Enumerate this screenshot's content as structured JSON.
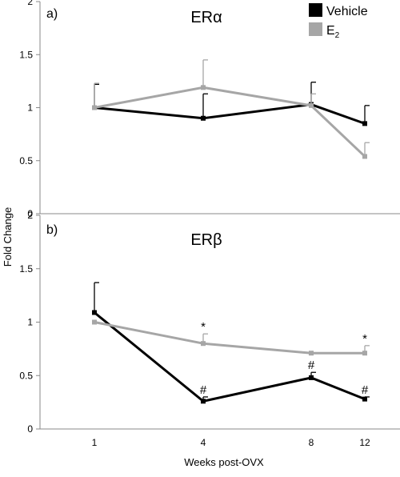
{
  "chart_data": [
    {
      "type": "line",
      "panel_label": "a)",
      "title": "ERα",
      "ylabel": "Fold Change",
      "xlabel": "",
      "ylim": [
        0,
        2
      ],
      "yticks": [
        "0",
        "0.5",
        "1",
        "1.5",
        "2"
      ],
      "categories": [
        "1",
        "4",
        "8",
        "12"
      ],
      "show_x_ticks": false,
      "series": [
        {
          "name": "Vehicle",
          "color": "#000000",
          "values": [
            1.0,
            0.9,
            1.03,
            0.85
          ],
          "errors": [
            0.22,
            0.23,
            0.21,
            0.17
          ],
          "markers": [
            "",
            "",
            "",
            ""
          ]
        },
        {
          "name": "E2",
          "color": "#a6a6a6",
          "values": [
            1.0,
            1.19,
            1.02,
            0.54
          ],
          "errors": [
            0.23,
            0.26,
            0.11,
            0.13
          ],
          "markers": [
            "",
            "",
            "",
            ""
          ]
        }
      ]
    },
    {
      "type": "line",
      "panel_label": "b)",
      "title": "ERβ",
      "ylabel": "Fold Change",
      "xlabel": "Weeks post-OVX",
      "ylim": [
        0,
        2
      ],
      "yticks": [
        "0",
        "0.5",
        "1",
        "1.5",
        "2"
      ],
      "categories": [
        "1",
        "4",
        "8",
        "12"
      ],
      "show_x_ticks": true,
      "series": [
        {
          "name": "Vehicle",
          "color": "#000000",
          "values": [
            1.09,
            0.26,
            0.48,
            0.28
          ],
          "errors": [
            0.28,
            0.04,
            0.05,
            0.02
          ],
          "markers": [
            "",
            "#",
            "#",
            "#"
          ]
        },
        {
          "name": "E2",
          "color": "#a6a6a6",
          "values": [
            1.0,
            0.8,
            0.71,
            0.71
          ],
          "errors": [
            0.0,
            0.09,
            0.0,
            0.07
          ],
          "markers": [
            "",
            "*",
            "",
            "*"
          ]
        }
      ]
    }
  ],
  "legend": {
    "entries": [
      {
        "label": "Vehicle",
        "subscript": "",
        "color": "#000000"
      },
      {
        "label": "E",
        "subscript": "2",
        "color": "#a6a6a6"
      }
    ]
  }
}
